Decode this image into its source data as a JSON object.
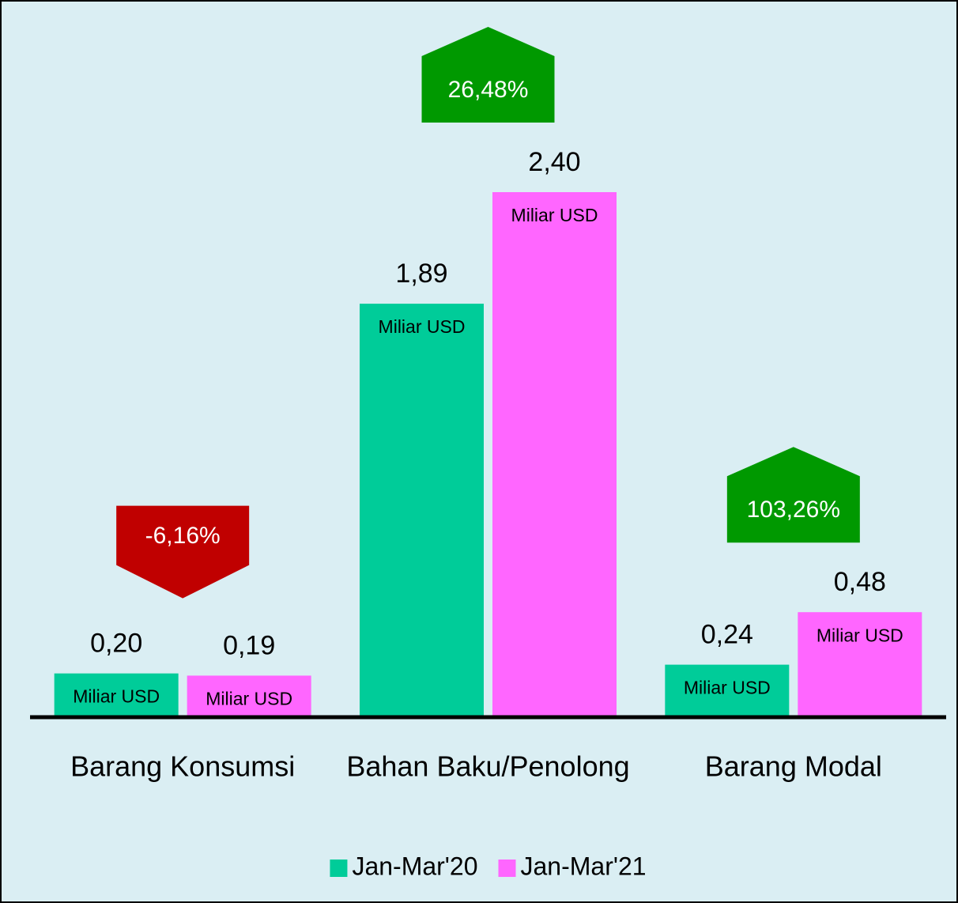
{
  "chart_data": {
    "type": "bar",
    "categories": [
      "Barang Konsumsi",
      "Bahan Baku/Penolong",
      "Barang Modal"
    ],
    "series": [
      {
        "name": "Jan-Mar'20",
        "color": "#00cc99",
        "values": [
          0.2,
          1.89,
          0.24
        ],
        "value_labels": [
          "0,20",
          "1,89",
          "0,24"
        ]
      },
      {
        "name": "Jan-Mar'21",
        "color": "#ff66ff",
        "values": [
          0.19,
          2.4,
          0.48
        ],
        "value_labels": [
          "0,19",
          "2,40",
          "0,48"
        ]
      }
    ],
    "unit_label": "Miliar USD",
    "changes": {
      "values": [
        -6.16,
        26.48,
        103.26
      ],
      "value_labels": [
        "-6,16%",
        "26,48%",
        "103,26%"
      ],
      "color_up": "#009900",
      "color_down": "#c00000"
    },
    "ylim": [
      0,
      3.0
    ],
    "legend": "bottom"
  }
}
